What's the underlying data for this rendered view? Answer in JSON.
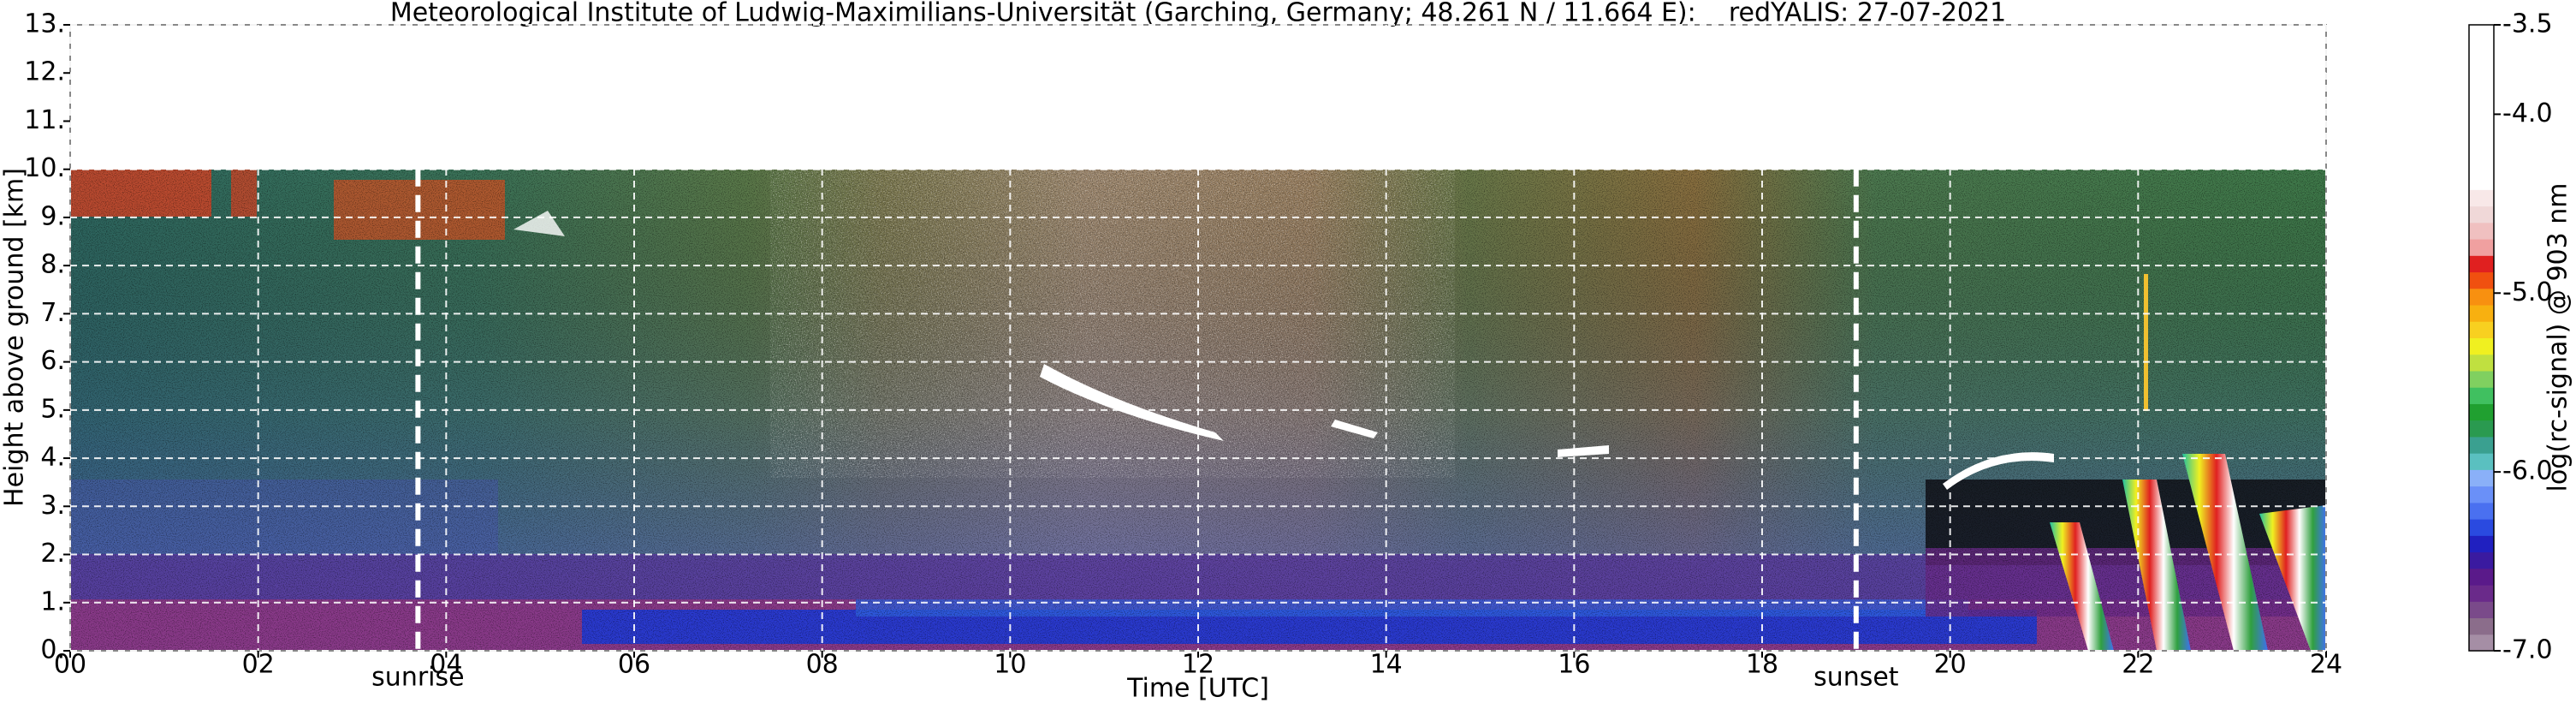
{
  "chart_data": {
    "type": "lidar-quicklook",
    "title": "Meteorological Institute of Ludwig-Maximilians-Universität (Garching, Germany; 48.261 N / 11.664 E):    redYALIS: 27-07-2021",
    "x_label": "Time [UTC]",
    "y_label": "Height above ground [km]",
    "xlim": [
      0,
      24
    ],
    "xticks": [
      {
        "value": 0,
        "label": "00"
      },
      {
        "value": 2,
        "label": "02"
      },
      {
        "value": 4,
        "label": "04"
      },
      {
        "value": 6,
        "label": "06"
      },
      {
        "value": 8,
        "label": "08"
      },
      {
        "value": 10,
        "label": "10"
      },
      {
        "value": 12,
        "label": "12"
      },
      {
        "value": 14,
        "label": "14"
      },
      {
        "value": 16,
        "label": "16"
      },
      {
        "value": 18,
        "label": "18"
      },
      {
        "value": 20,
        "label": "20"
      },
      {
        "value": 22,
        "label": "22"
      },
      {
        "value": 24,
        "label": "24"
      }
    ],
    "ylim": [
      0,
      13
    ],
    "yticks": [
      {
        "value": 0,
        "label": "0."
      },
      {
        "value": 1,
        "label": "1."
      },
      {
        "value": 2,
        "label": "2."
      },
      {
        "value": 3,
        "label": "3."
      },
      {
        "value": 4,
        "label": "4."
      },
      {
        "value": 5,
        "label": "5."
      },
      {
        "value": 6,
        "label": "6."
      },
      {
        "value": 7,
        "label": "7."
      },
      {
        "value": 8,
        "label": "8."
      },
      {
        "value": 9,
        "label": "9."
      },
      {
        "value": 10,
        "label": "10."
      },
      {
        "value": 11,
        "label": "11."
      },
      {
        "value": 12,
        "label": "12."
      },
      {
        "value": 13,
        "label": "13."
      }
    ],
    "grid": true,
    "annotations": [
      {
        "text": "sunrise",
        "x": 3.7
      },
      {
        "text": "sunset",
        "x": 19.0
      }
    ],
    "colorbar": {
      "label": "log(rc-signal) @ 903 nm",
      "lim": [
        -7,
        -3.5
      ],
      "ticks": [
        -3.5,
        {
          "value": -4,
          "label": "-4.0"
        },
        {
          "value": -5,
          "label": "-5.0"
        },
        {
          "value": -6,
          "label": "-6.0"
        },
        {
          "value": -7,
          "label": "-7.0"
        }
      ],
      "colors": [
        "#a58ea5",
        "#8b6d8b",
        "#7a4a8a",
        "#6a2a8a",
        "#5a1a8a",
        "#3a1aa0",
        "#2020c0",
        "#2a4ae0",
        "#4a70f0",
        "#6a90f8",
        "#8ab0f8",
        "#5ac0c0",
        "#3aa090",
        "#2a9a50",
        "#20a030",
        "#40c060",
        "#80d060",
        "#c0e040",
        "#f0f020",
        "#f8d020",
        "#f8b010",
        "#f89010",
        "#f05010",
        "#e02020",
        "#f0a0a0",
        "#f0c0c0",
        "#f0d8d8",
        "#f8e8e8",
        "#ffffff",
        "#ffffff",
        "#ffffff",
        "#ffffff",
        "#ffffff",
        "#ffffff",
        "#ffffff",
        "#ffffff",
        "#ffffff",
        "#ffffff"
      ]
    }
  }
}
